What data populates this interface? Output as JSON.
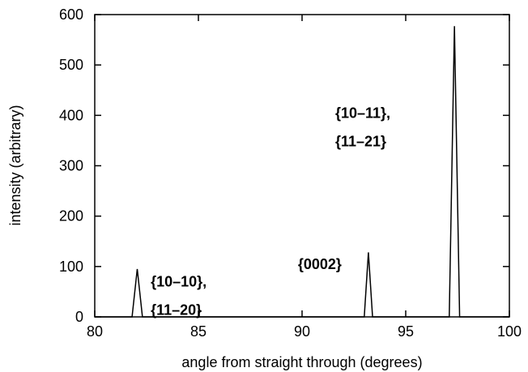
{
  "chart_data": {
    "type": "line",
    "title": "",
    "xlabel": "angle from straight through (degrees)",
    "ylabel": "intensity (arbitrary)",
    "xlim": [
      80,
      100
    ],
    "ylim": [
      0,
      600
    ],
    "xticks": [
      80,
      85,
      90,
      95,
      100
    ],
    "yticks": [
      0,
      100,
      200,
      300,
      400,
      500,
      600
    ],
    "grid": false,
    "legend": "none",
    "series": [
      {
        "x": [
          80.0,
          81.8,
          82.05,
          82.3,
          93.0,
          93.2,
          93.4,
          97.1,
          97.35,
          97.6,
          100.0
        ],
        "y": [
          0,
          0,
          95,
          0,
          0,
          128,
          0,
          0,
          577,
          0,
          0
        ]
      }
    ],
    "annotations": [
      {
        "lines": [
          "{10–10},",
          "{11–20}"
        ],
        "x": 82.7,
        "y": 60
      },
      {
        "lines": [
          "{0002}"
        ],
        "x": 89.8,
        "y": 95
      },
      {
        "lines": [
          "{10–11},",
          "{11–21}"
        ],
        "x": 91.6,
        "y": 395
      }
    ],
    "line_color": "#000000"
  }
}
